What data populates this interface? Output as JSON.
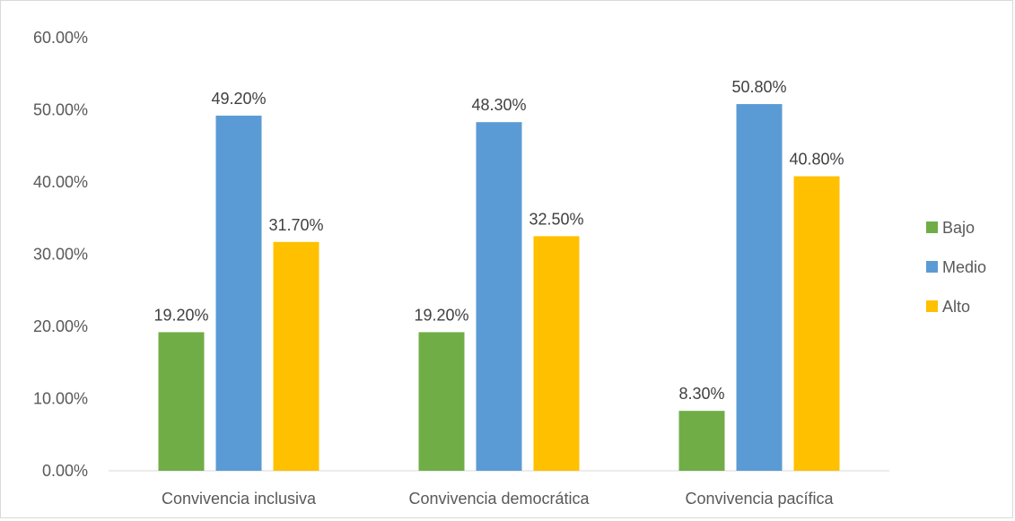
{
  "chart_data": {
    "type": "bar",
    "title": "",
    "xlabel": "",
    "ylabel": "",
    "categories": [
      "Convivencia inclusiva",
      "Convivencia democrática",
      "Convivencia pacífica"
    ],
    "series": [
      {
        "name": "Bajo",
        "color": "#70ad47",
        "values": [
          19.2,
          19.2,
          8.3
        ],
        "labels": [
          "19.20%",
          "19.20%",
          "8.30%"
        ]
      },
      {
        "name": "Medio",
        "color": "#5b9bd5",
        "values": [
          49.2,
          48.3,
          50.8
        ],
        "labels": [
          "49.20%",
          "48.30%",
          "50.80%"
        ]
      },
      {
        "name": "Alto",
        "color": "#ffc000",
        "values": [
          31.7,
          32.5,
          40.8
        ],
        "labels": [
          "31.70%",
          "32.50%",
          "40.80%"
        ]
      }
    ],
    "ylim": [
      0,
      60
    ],
    "yticks": [
      0,
      10,
      20,
      30,
      40,
      50,
      60
    ],
    "ytick_labels": [
      "0.00%",
      "10.00%",
      "20.00%",
      "30.00%",
      "40.00%",
      "50.00%",
      "60.00%"
    ],
    "grid": false,
    "legend_position": "right"
  }
}
